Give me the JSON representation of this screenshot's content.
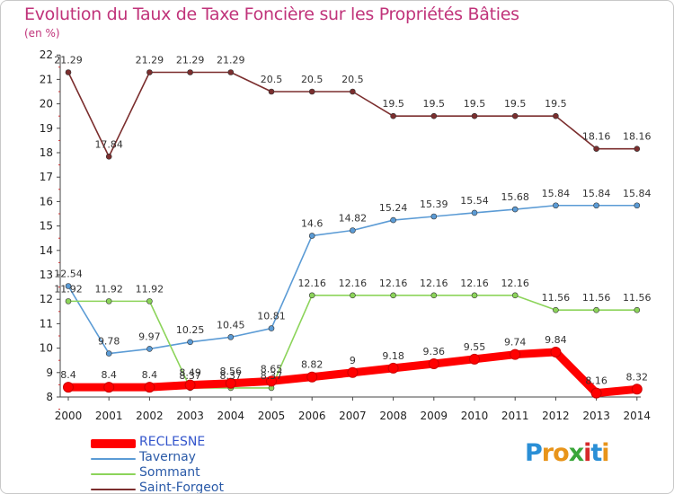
{
  "header": {
    "title": "Evolution du Taux de Taxe Foncière sur les Propriétés Bâties",
    "subtitle": "(en %)"
  },
  "logo": {
    "text": "Proxiti",
    "letters": [
      "P",
      "r",
      "o",
      "x",
      "i",
      "t",
      "i"
    ],
    "colors": [
      "#2a8fd6",
      "#e8941a",
      "#e8941a",
      "#3aa63a",
      "#d62a2a",
      "#2a8fd6",
      "#e8941a"
    ]
  },
  "chart_data": {
    "type": "line",
    "title": "Evolution du Taux de Taxe Foncière sur les Propriétés Bâties",
    "ylabel": "(en %)",
    "xlabel": "",
    "categories": [
      "2000",
      "2001",
      "2002",
      "2003",
      "2004",
      "2005",
      "2006",
      "2007",
      "2008",
      "2009",
      "2010",
      "2011",
      "2012",
      "2013",
      "2014"
    ],
    "ylim": [
      8,
      22
    ],
    "yticks": [
      8,
      9,
      10,
      11,
      12,
      13,
      14,
      15,
      16,
      17,
      18,
      19,
      20,
      21,
      22
    ],
    "grid": false,
    "legend_position": "bottom-left",
    "series": [
      {
        "name": "RECLESNE",
        "color": "#ff0000",
        "values": [
          8.4,
          8.4,
          8.4,
          8.49,
          8.56,
          8.65,
          8.82,
          9,
          9.18,
          9.36,
          9.55,
          9.74,
          9.84,
          8.16,
          8.32
        ],
        "labels": [
          "8.4",
          "8.4",
          "8.4",
          "8.49",
          "8.56",
          "8.65",
          "8.82",
          "9",
          "9.18",
          "9.36",
          "9.55",
          "9.74",
          "9.84",
          "8.16",
          "8.32"
        ]
      },
      {
        "name": "Tavernay",
        "color": "#5b9bd5",
        "values": [
          12.54,
          9.78,
          9.97,
          10.25,
          10.45,
          10.81,
          14.6,
          14.82,
          15.24,
          15.39,
          15.54,
          15.68,
          15.84,
          15.84,
          15.84
        ],
        "labels": [
          "12.54",
          "9.78",
          "9.97",
          "10.25",
          "10.45",
          "10.81",
          "14.6",
          "14.82",
          "15.24",
          "15.39",
          "15.54",
          "15.68",
          "15.84",
          "15.84",
          "15.84"
        ]
      },
      {
        "name": "Sommant",
        "color": "#8cd45a",
        "values": [
          11.92,
          11.92,
          11.92,
          8.37,
          8.37,
          8.37,
          12.16,
          12.16,
          12.16,
          12.16,
          12.16,
          12.16,
          11.56,
          11.56,
          11.56
        ],
        "labels": [
          "11.92",
          "11.92",
          "11.92",
          "8.37",
          "8.37",
          "8.37",
          "12.16",
          "12.16",
          "12.16",
          "12.16",
          "12.16",
          "12.16",
          "11.56",
          "11.56",
          "11.56"
        ]
      },
      {
        "name": "Saint-Forgeot",
        "color": "#7b2e2e",
        "values": [
          21.29,
          17.84,
          21.29,
          21.29,
          21.29,
          20.5,
          20.5,
          20.5,
          19.5,
          19.5,
          19.5,
          19.5,
          19.5,
          18.16,
          18.16
        ],
        "labels": [
          "21.29",
          "17.84",
          "21.29",
          "21.29",
          "21.29",
          "20.5",
          "20.5",
          "20.5",
          "19.5",
          "19.5",
          "19.5",
          "19.5",
          "19.5",
          "18.16",
          "18.16"
        ]
      }
    ]
  }
}
